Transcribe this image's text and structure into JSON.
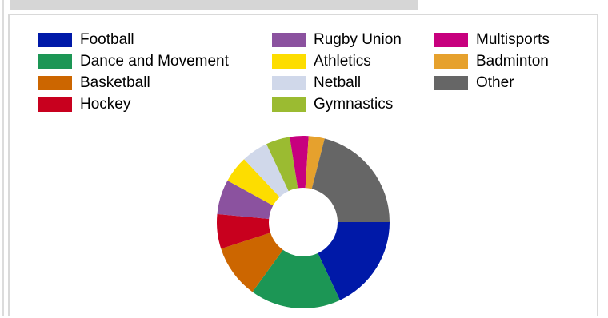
{
  "chart_data": {
    "type": "pie",
    "donut": true,
    "legend_placement": "top",
    "categories": [
      "Football",
      "Dance and Movement",
      "Basketball",
      "Hockey",
      "Rugby Union",
      "Athletics",
      "Netball",
      "Gymnastics",
      "Multisports",
      "Badminton",
      "Other"
    ],
    "values": [
      18,
      17,
      10,
      6.5,
      6.5,
      5,
      5,
      4.5,
      3.5,
      3,
      21
    ],
    "colors": [
      "#0019a8",
      "#1c9655",
      "#cc6600",
      "#c8001e",
      "#8b529f",
      "#fddd00",
      "#d0d8ea",
      "#9bbb31",
      "#c7007e",
      "#e6a12d",
      "#666666"
    ]
  }
}
